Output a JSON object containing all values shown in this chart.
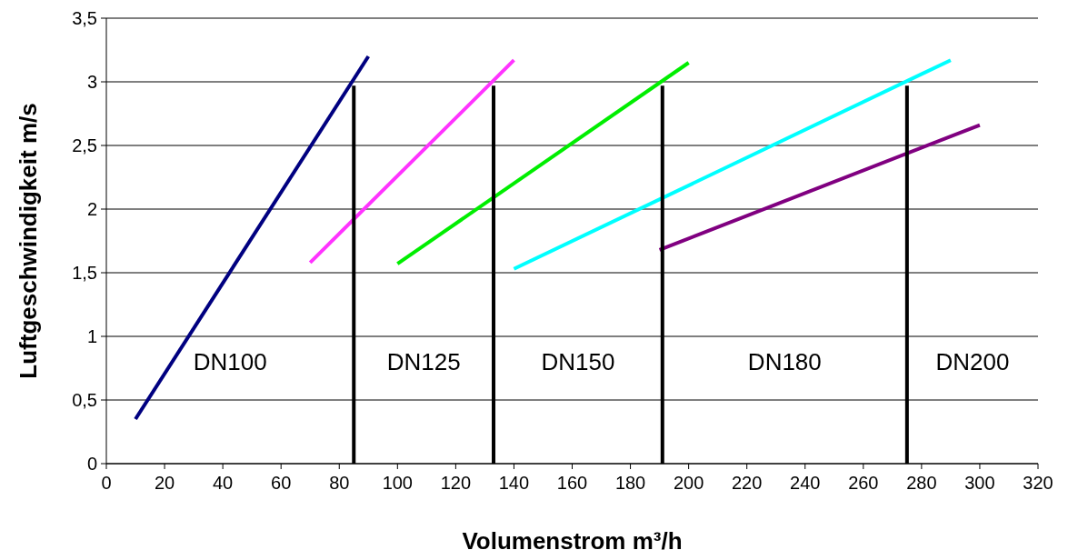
{
  "chart_data": {
    "type": "line",
    "xlabel": "Volumenstrom m³/h",
    "ylabel": "Luftgeschwindigkeit m/s",
    "xlim": [
      0,
      320
    ],
    "xticks": [
      0,
      20,
      40,
      60,
      80,
      100,
      120,
      140,
      160,
      180,
      200,
      220,
      240,
      260,
      280,
      300,
      320
    ],
    "ylim": [
      0,
      3.5
    ],
    "yticks": [
      0,
      {
        "value": 0.5,
        "label": "0,5"
      },
      1,
      {
        "value": 1.5,
        "label": "1,5"
      },
      2,
      {
        "value": 2.5,
        "label": "2,5"
      },
      3,
      {
        "value": 3.5,
        "label": "3,5"
      }
    ],
    "grid": "y",
    "series": [
      {
        "color": "#000080",
        "x": [
          10,
          90
        ],
        "values": [
          0.35,
          3.2
        ]
      },
      {
        "color": "#ff33ff",
        "x": [
          70,
          140
        ],
        "values": [
          1.58,
          3.17
        ]
      },
      {
        "color": "#00ee00",
        "x": [
          100,
          200
        ],
        "values": [
          1.57,
          3.15
        ]
      },
      {
        "color": "#00ffff",
        "x": [
          140,
          290
        ],
        "values": [
          1.53,
          3.17
        ]
      },
      {
        "color": "#800080",
        "x": [
          190,
          300
        ],
        "values": [
          1.68,
          2.66
        ]
      },
      {
        "color": "#000000",
        "x": [
          85,
          85
        ],
        "values": [
          0,
          2.97
        ]
      },
      {
        "color": "#000000",
        "x": [
          133,
          133
        ],
        "values": [
          0,
          2.97
        ]
      },
      {
        "color": "#000000",
        "x": [
          191,
          191
        ],
        "values": [
          0,
          2.97
        ]
      },
      {
        "color": "#000000",
        "x": [
          275,
          275
        ],
        "values": [
          0,
          2.97
        ]
      }
    ],
    "annotations": [
      "DN100",
      "DN125",
      "DN150",
      "DN180",
      "DN200"
    ]
  }
}
